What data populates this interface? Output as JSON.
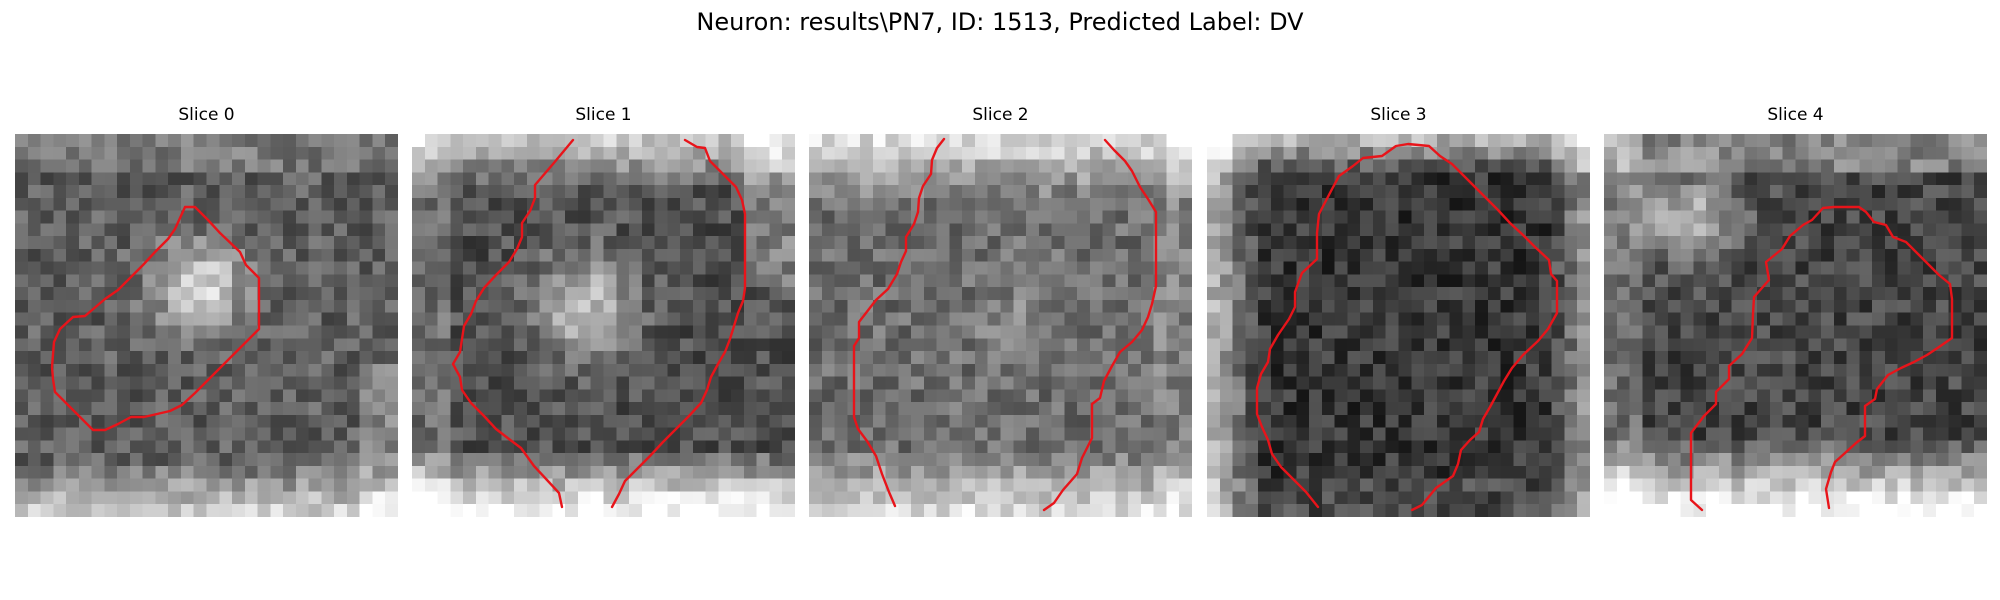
{
  "figure": {
    "title": "Neuron: results\\PN7, ID: 1513, Predicted Label: DV"
  },
  "colors": {
    "contour": "#e8141a",
    "background": "#ffffff"
  },
  "panels": [
    {
      "title": "Slice 0",
      "image": "grayscale-microscopy-neuron-slice",
      "contour": "closed-red-outline"
    },
    {
      "title": "Slice 1",
      "image": "grayscale-microscopy-neuron-slice",
      "contour": "two-red-boundary-lines"
    },
    {
      "title": "Slice 2",
      "image": "grayscale-microscopy-neuron-slice",
      "contour": "two-red-boundary-lines"
    },
    {
      "title": "Slice 3",
      "image": "grayscale-microscopy-neuron-slice",
      "contour": "open-red-outline"
    },
    {
      "title": "Slice 4",
      "image": "grayscale-microscopy-neuron-slice",
      "contour": "open-red-outline"
    }
  ]
}
